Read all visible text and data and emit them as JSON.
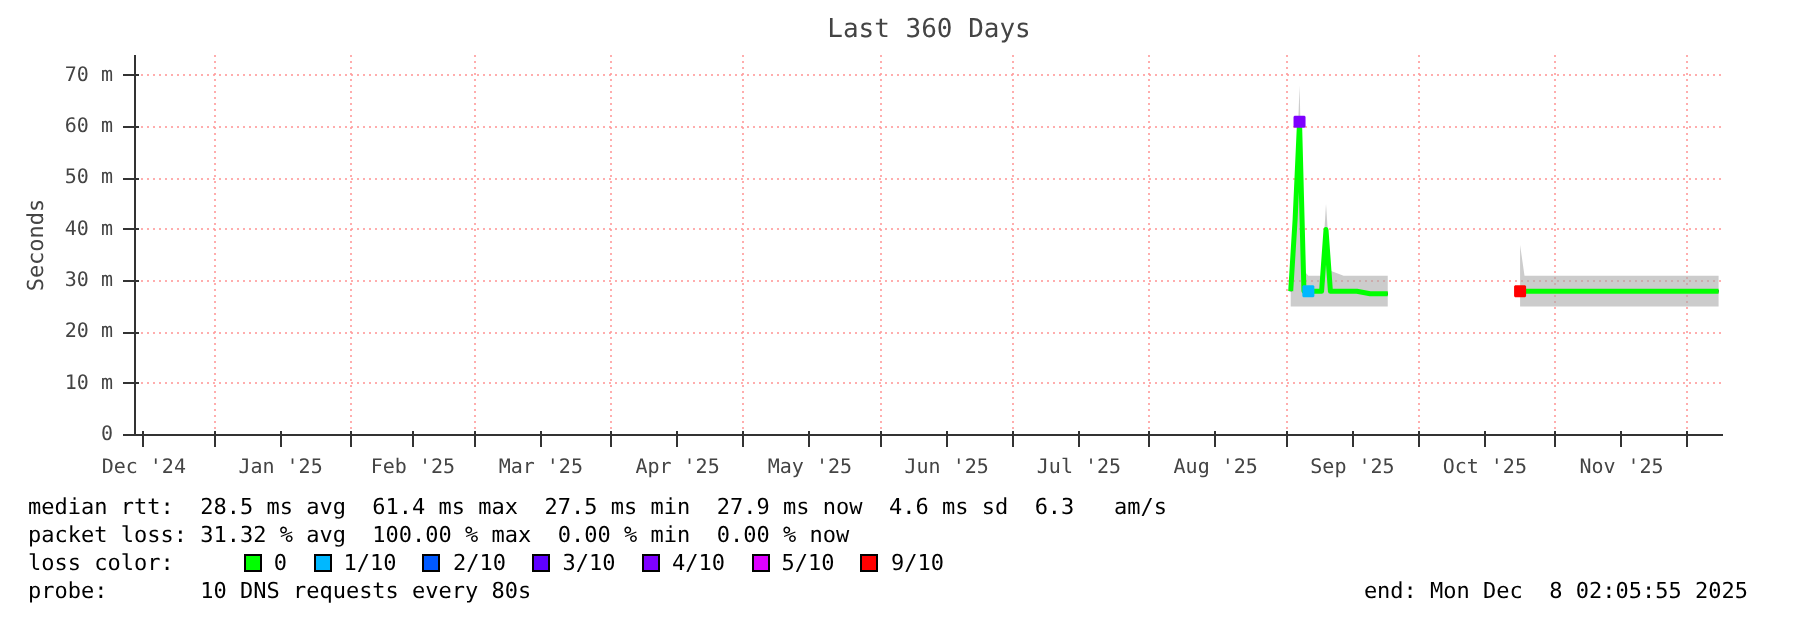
{
  "chart_data": {
    "type": "line",
    "title": "Last 360 Days",
    "ylabel": "Seconds",
    "xlim": [
      "2024-12-14",
      "2025-12-09"
    ],
    "xticks": [
      {
        "value": "2024-12-16",
        "label": "Dec '24"
      },
      {
        "value": "2025-01-01",
        "label": null
      },
      {
        "value": "2025-01-16",
        "label": "Jan '25"
      },
      {
        "value": "2025-02-01",
        "label": null
      },
      {
        "value": "2025-02-15",
        "label": "Feb '25"
      },
      {
        "value": "2025-03-01",
        "label": null
      },
      {
        "value": "2025-03-16",
        "label": "Mar '25"
      },
      {
        "value": "2025-04-01",
        "label": null
      },
      {
        "value": "2025-04-16",
        "label": "Apr '25"
      },
      {
        "value": "2025-05-01",
        "label": null
      },
      {
        "value": "2025-05-16",
        "label": "May '25"
      },
      {
        "value": "2025-06-01",
        "label": null
      },
      {
        "value": "2025-06-16",
        "label": "Jun '25"
      },
      {
        "value": "2025-07-01",
        "label": null
      },
      {
        "value": "2025-07-16",
        "label": "Jul '25"
      },
      {
        "value": "2025-08-01",
        "label": null
      },
      {
        "value": "2025-08-16",
        "label": "Aug '25"
      },
      {
        "value": "2025-09-01",
        "label": null
      },
      {
        "value": "2025-09-16",
        "label": "Sep '25"
      },
      {
        "value": "2025-10-01",
        "label": null
      },
      {
        "value": "2025-10-16",
        "label": "Oct '25"
      },
      {
        "value": "2025-11-01",
        "label": null
      },
      {
        "value": "2025-11-16",
        "label": "Nov '25"
      },
      {
        "value": "2025-12-01",
        "label": null
      }
    ],
    "ylim": [
      0,
      74
    ],
    "yticks": [
      {
        "value": 0,
        "label": "0"
      },
      {
        "value": 10,
        "label": "10 m"
      },
      {
        "value": 20,
        "label": "20 m"
      },
      {
        "value": 30,
        "label": "30 m"
      },
      {
        "value": 40,
        "label": "40 m"
      },
      {
        "value": 50,
        "label": "50 m"
      },
      {
        "value": 60,
        "label": "60 m"
      },
      {
        "value": 70,
        "label": "70 m"
      }
    ],
    "grid": true,
    "legend": "bottom",
    "legend_title": "loss color:",
    "marker": "none",
    "line_style": "solid",
    "series": [
      {
        "name": "0",
        "color": "#00ff00",
        "x": [
          "2025-09-02",
          "2025-09-03",
          "2025-09-04",
          "2025-09-05",
          "2025-09-06",
          "2025-09-07",
          "2025-09-08",
          "2025-09-09",
          "2025-09-10",
          "2025-09-11",
          "2025-09-14",
          "2025-09-17",
          "2025-09-20",
          "2025-09-24",
          "2025-10-10",
          "2025-10-24",
          "2025-10-25",
          "2025-10-29",
          "2025-11-02",
          "2025-11-06",
          "2025-11-10",
          "2025-11-14",
          "2025-11-18",
          "2025-11-22",
          "2025-11-26",
          "2025-11-30",
          "2025-12-04",
          "2025-12-08"
        ],
        "values": [
          28,
          42,
          61,
          28,
          28,
          28,
          28,
          28,
          40,
          28,
          28,
          28,
          27.5,
          27.5,
          null,
          28,
          28,
          28,
          28,
          28,
          28,
          28,
          28,
          28,
          28,
          28,
          28,
          28
        ],
        "lower": [
          25,
          25,
          25,
          25,
          25,
          25,
          25,
          25,
          25,
          25,
          25,
          25,
          25,
          25,
          null,
          25,
          25,
          25,
          25,
          25,
          25,
          25,
          25,
          25,
          25,
          25,
          25,
          25
        ],
        "upper": [
          31,
          44,
          68,
          32,
          31,
          31,
          31,
          31,
          45,
          32,
          31,
          31,
          31,
          31,
          null,
          37,
          31,
          31,
          31,
          31,
          31,
          31,
          31,
          31,
          31,
          31,
          31,
          31
        ]
      },
      {
        "name": "1/10",
        "color": "#00b8ff",
        "type": "scatter",
        "marker": "square",
        "x": [
          "2025-09-06"
        ],
        "values": [
          28
        ]
      },
      {
        "name": "2/10",
        "color": "#0059ff",
        "type": "scatter"
      },
      {
        "name": "3/10",
        "color": "#5e00ff",
        "type": "scatter"
      },
      {
        "name": "4/10",
        "color": "#7e00ff",
        "type": "scatter",
        "marker": "square",
        "x": [
          "2025-09-04"
        ],
        "values": [
          61
        ]
      },
      {
        "name": "5/10",
        "color": "#dd00ff",
        "type": "scatter"
      },
      {
        "name": "9/10",
        "color": "#ff0000",
        "type": "scatter",
        "marker": "square",
        "x": [
          "2025-10-24"
        ],
        "values": [
          28
        ]
      }
    ],
    "annotations": [
      "median rtt:  28.5 ms avg  61.4 ms max  27.5 ms min  27.9 ms now  4.6 ms sd  6.3   am/s",
      "packet loss: 31.32 % avg  100.00 % max  0.00 % min  0.00 % now",
      "probe:       10 DNS requests every 80s",
      "end: Mon Dec  8 02:05:55 2025"
    ]
  }
}
